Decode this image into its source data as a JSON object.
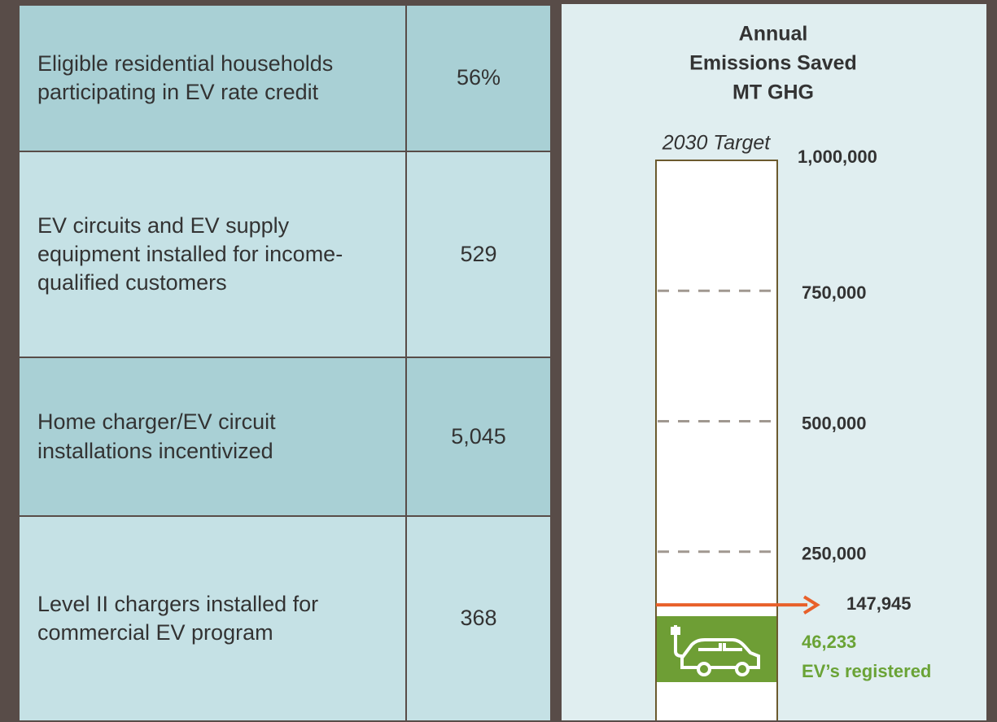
{
  "table": {
    "rows": [
      [
        "Eligible residential households participating in EV rate credit",
        "56%"
      ],
      [
        "EV circuits and EV supply equipment installed for income-qualified customers",
        "529"
      ],
      [
        "Home charger/EV circuit installations incentivized",
        "5,045"
      ],
      [
        "Level II chargers installed for commercial EV program",
        "368"
      ]
    ]
  },
  "chart_data": {
    "type": "gauge",
    "title_lines": [
      "Annual",
      "Emissions Saved",
      "MT GHG"
    ],
    "target_label": "2030 Target",
    "ylim": [
      0,
      1000000
    ],
    "yticks": [
      {
        "value": 250000,
        "label": "250,000"
      },
      {
        "value": 500000,
        "label": "500,000"
      },
      {
        "value": 750000,
        "label": "750,000"
      },
      {
        "value": 1000000,
        "label": "1,000,000"
      }
    ],
    "values": [
      147945
    ],
    "value_labels": [
      "147,945"
    ],
    "color": "#e8602a",
    "annotation_lines": [
      "46,233",
      "EV’s registered"
    ],
    "annotation_color": "#6aa336"
  }
}
